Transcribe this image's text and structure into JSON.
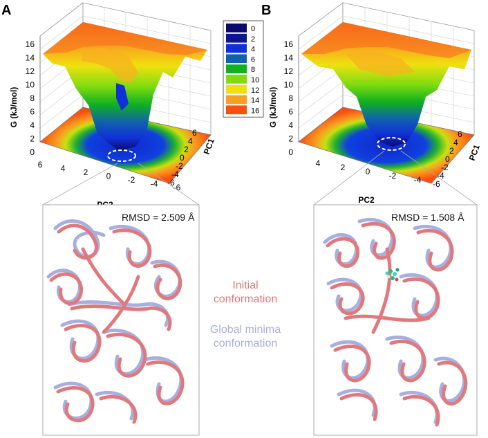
{
  "panels": [
    {
      "letter": "A",
      "zlabel": "G (kJ/mol)",
      "xlabel": "PC2",
      "ylabel": "PC1",
      "zticks": [
        "0",
        "2",
        "4",
        "6",
        "8",
        "10",
        "12",
        "14",
        "16"
      ],
      "xticks": [
        "6",
        "4",
        "2",
        "0",
        "-2",
        "-4",
        "-6"
      ],
      "yticks": [
        "6",
        "4",
        "2",
        "0",
        "-2",
        "-4",
        "-6"
      ],
      "rmsd": "RMSD = 2.509 Å"
    },
    {
      "letter": "B",
      "zlabel": "G (kJ/mol)",
      "xlabel": "PC2",
      "ylabel": "PC1",
      "zticks": [
        "0",
        "2",
        "4",
        "6",
        "8",
        "10",
        "12",
        "14",
        "16"
      ],
      "xticks": [
        "4",
        "2",
        "0",
        "-2",
        "-4"
      ],
      "yticks": [
        "6",
        "4",
        "2",
        "0",
        "-2",
        "-4",
        "-6"
      ],
      "rmsd": "RMSD = 1.508 Å"
    }
  ],
  "colorbar": {
    "levels": [
      "0",
      "2",
      "4",
      "6",
      "8",
      "10",
      "12",
      "14",
      "16"
    ],
    "colors": [
      "#0a0a6e",
      "#0c1690",
      "#1030d8",
      "#1060b0",
      "#10b020",
      "#80dc10",
      "#f0e010",
      "#f8a020",
      "#f85010"
    ]
  },
  "legend": {
    "initial": [
      "Initial",
      "conformation"
    ],
    "global": [
      "Global minima",
      "conformation"
    ],
    "initial_color": "#e0797c",
    "global_color": "#a8aee0"
  }
}
